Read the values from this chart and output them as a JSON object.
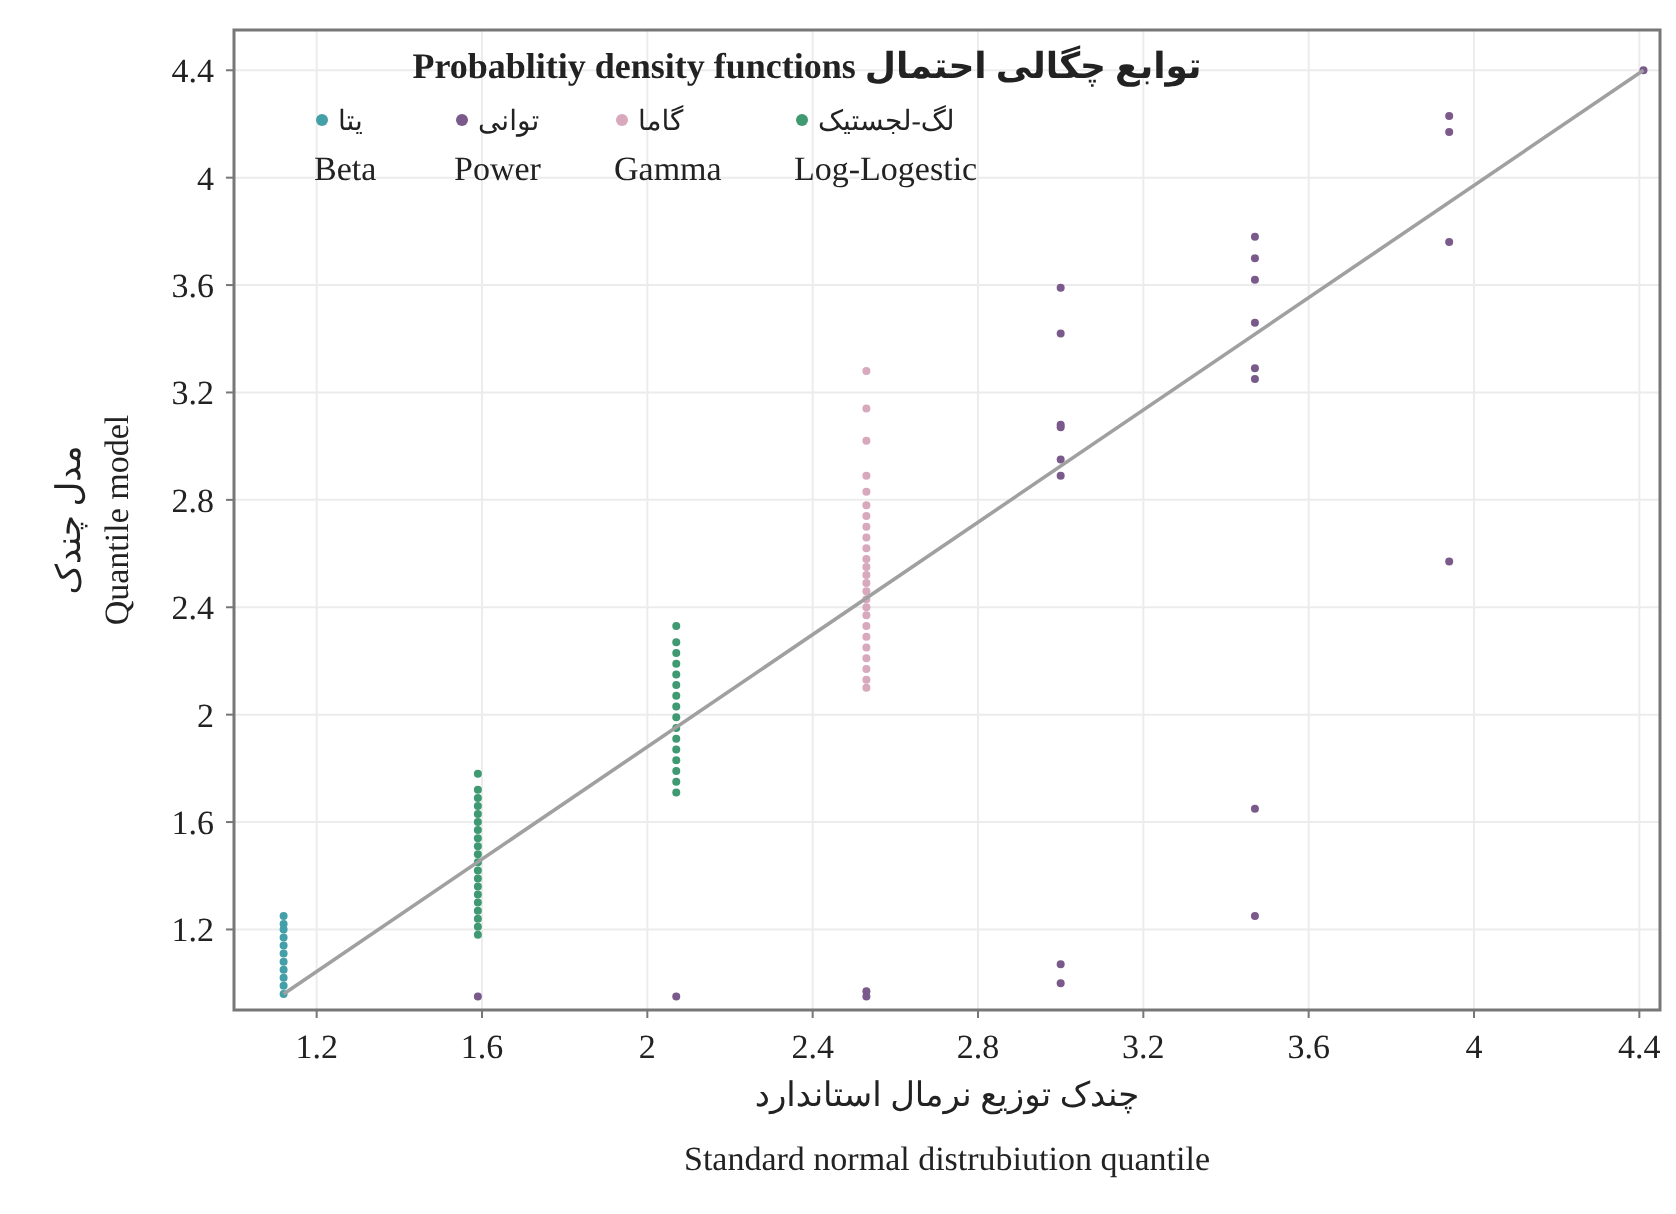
{
  "chart_data": {
    "type": "scatter",
    "title": "Probablitiy density functions توابع چگالی احتمال",
    "xlabel": "چندک توزیع نرمال استاندارد\nStandard normal distrubiution quantile",
    "ylabel": "مدل چندک\nQuantile model",
    "xlim": [
      1.0,
      4.45
    ],
    "ylim": [
      0.9,
      4.55
    ],
    "xticks": [
      1.2,
      1.6,
      2,
      2.4,
      2.8,
      3.2,
      3.6,
      4,
      4.4
    ],
    "yticks": [
      1.2,
      1.6,
      2,
      2.4,
      2.8,
      3.2,
      3.6,
      4,
      4.4
    ],
    "grid": true,
    "legend": "top left",
    "marker": "circle",
    "series": [
      {
        "name": "یتا\nBeta",
        "color": "#44a0a8",
        "x": [
          1.12,
          1.12,
          1.12,
          1.12,
          1.12,
          1.12,
          1.12,
          1.12,
          1.12,
          1.12,
          1.12
        ],
        "values": [
          0.96,
          0.99,
          1.02,
          1.05,
          1.08,
          1.11,
          1.14,
          1.17,
          1.2,
          1.22,
          1.25
        ]
      },
      {
        "name": "توانی\nPower",
        "color": "#7a5a8a",
        "x": [
          1.59,
          2.07,
          2.53,
          2.53,
          3.0,
          3.0,
          3.0,
          3.0,
          3.0,
          3.0,
          3.0,
          3.0,
          3.47,
          3.47,
          3.47,
          3.47,
          3.47,
          3.47,
          3.47,
          3.47,
          3.94,
          3.94,
          3.94,
          3.94,
          4.41
        ],
        "values": [
          0.95,
          0.95,
          0.97,
          0.95,
          3.59,
          3.42,
          3.08,
          3.07,
          2.95,
          2.89,
          1.07,
          1.0,
          3.78,
          3.7,
          3.62,
          3.46,
          3.29,
          3.25,
          1.65,
          1.25,
          4.23,
          4.17,
          3.76,
          2.57,
          4.4
        ]
      },
      {
        "name": "گاما\nGamma",
        "color": "#d8a8bc",
        "x": [
          2.53,
          2.53,
          2.53,
          2.53,
          2.53,
          2.53,
          2.53,
          2.53,
          2.53,
          2.53,
          2.53,
          2.53,
          2.53,
          2.53,
          2.53,
          2.53,
          2.53,
          2.53,
          2.53,
          2.53,
          2.53,
          2.53,
          2.53,
          2.53,
          2.53
        ],
        "values": [
          3.28,
          3.14,
          3.02,
          2.89,
          2.83,
          2.78,
          2.74,
          2.7,
          2.66,
          2.62,
          2.58,
          2.55,
          2.52,
          2.49,
          2.46,
          2.43,
          2.4,
          2.37,
          2.33,
          2.29,
          2.25,
          2.21,
          2.17,
          2.13,
          2.1
        ]
      },
      {
        "name": "لگ-لجستیک\nLog-Logestic",
        "color": "#3f9a72",
        "x": [
          1.59,
          1.59,
          1.59,
          1.59,
          1.59,
          1.59,
          1.59,
          1.59,
          1.59,
          1.59,
          1.59,
          1.59,
          1.59,
          1.59,
          1.59,
          1.59,
          1.59,
          1.59,
          1.59,
          1.59,
          2.07,
          2.07,
          2.07,
          2.07,
          2.07,
          2.07,
          2.07,
          2.07,
          2.07,
          2.07,
          2.07,
          2.07,
          2.07,
          2.07,
          2.07,
          2.07
        ],
        "values": [
          1.18,
          1.21,
          1.24,
          1.27,
          1.3,
          1.33,
          1.36,
          1.39,
          1.42,
          1.45,
          1.48,
          1.51,
          1.54,
          1.57,
          1.6,
          1.63,
          1.66,
          1.69,
          1.72,
          1.78,
          1.71,
          1.75,
          1.79,
          1.83,
          1.87,
          1.91,
          1.95,
          1.99,
          2.03,
          2.07,
          2.11,
          2.15,
          2.19,
          2.23,
          2.27,
          2.33
        ]
      },
      {
        "type": "line",
        "marker": "none",
        "color": "#a0a0a0",
        "x": [
          1.12,
          4.41
        ],
        "values": [
          0.96,
          4.4
        ]
      }
    ]
  }
}
